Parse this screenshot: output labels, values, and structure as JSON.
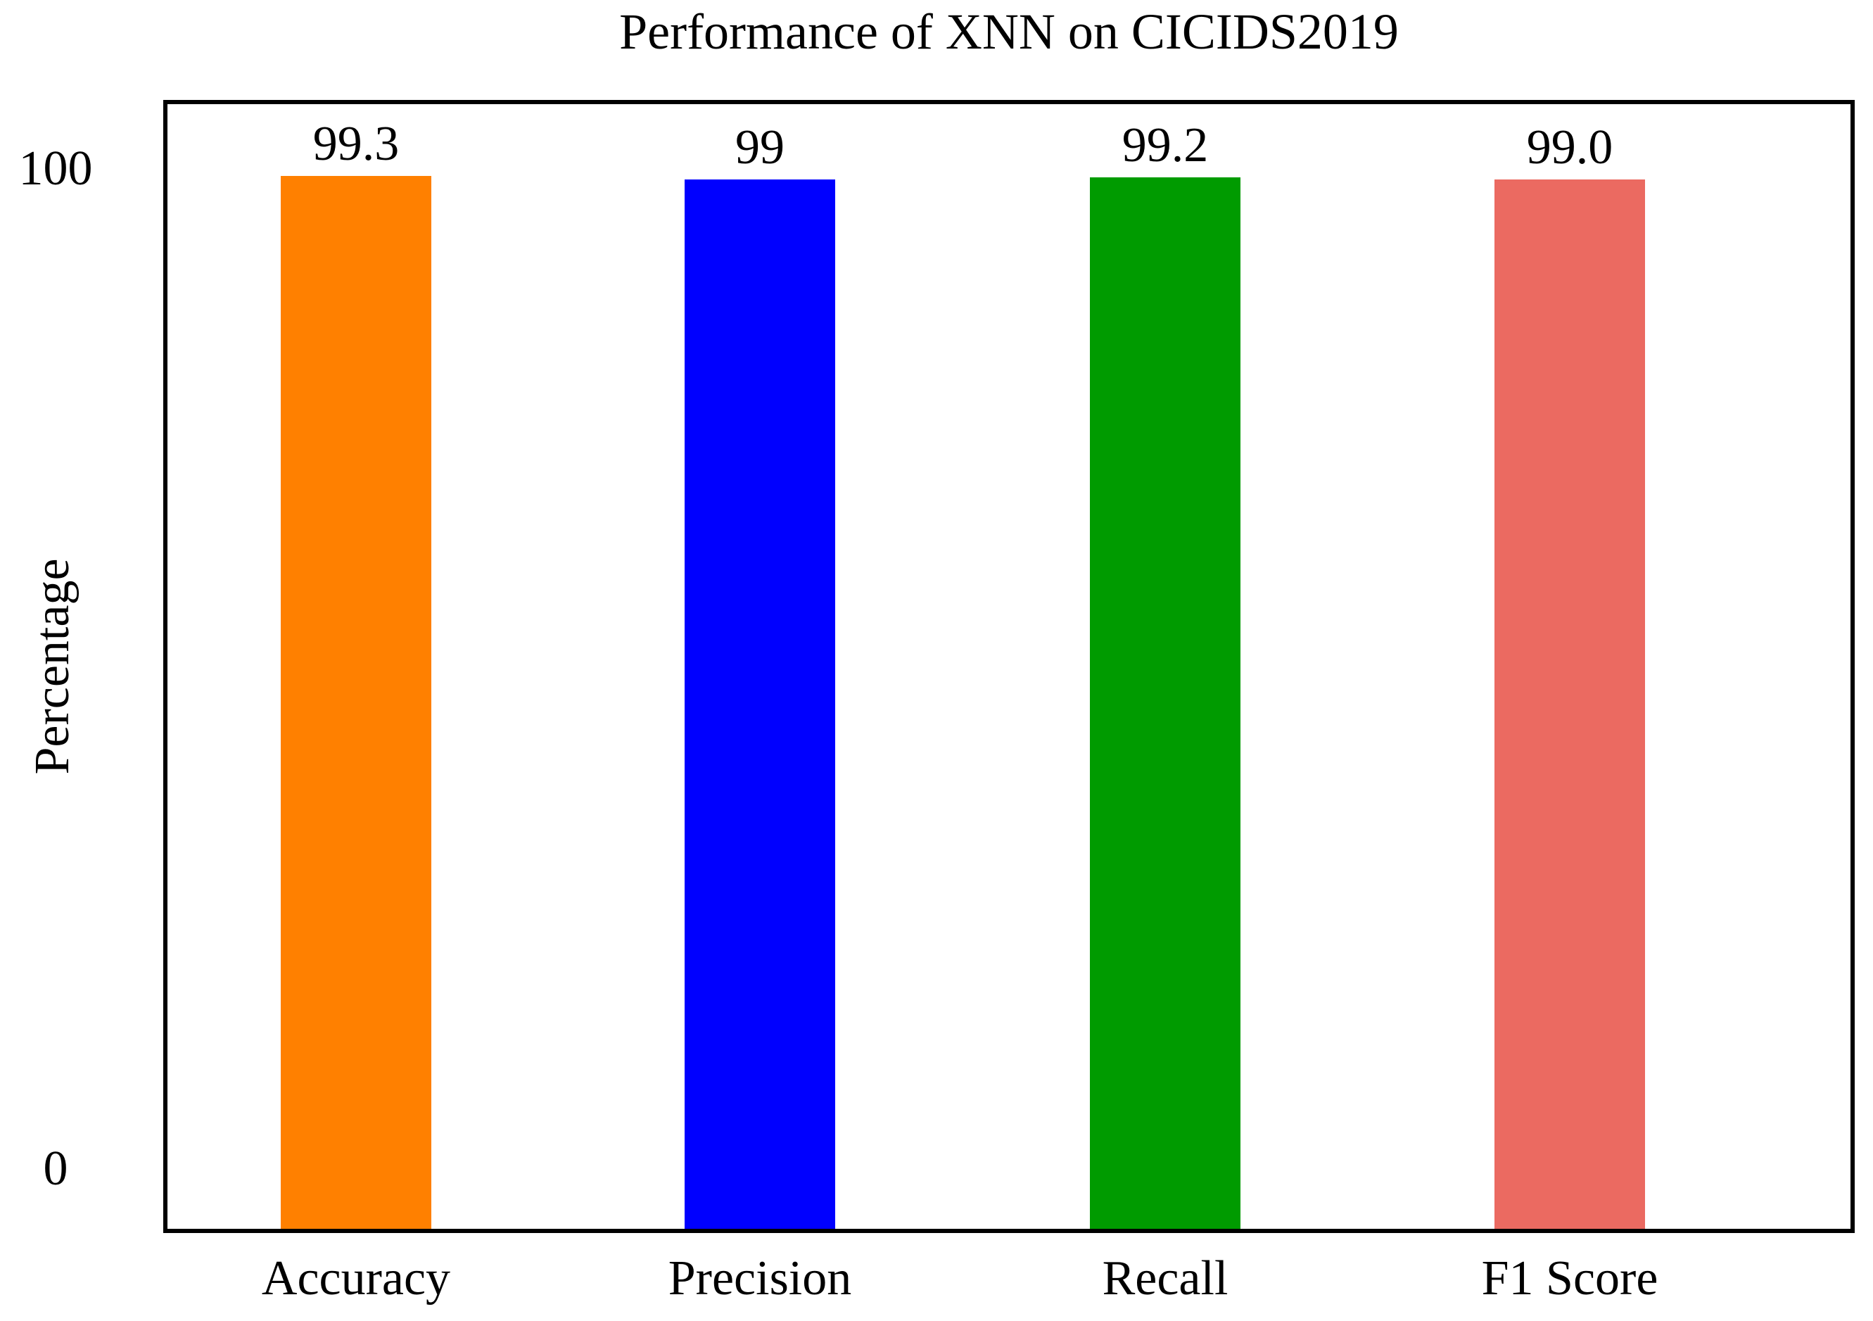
{
  "title": "Performance of XNN on CICIDS2019",
  "colors": {
    "background": "#FFFFFF",
    "frame": "#000000",
    "text": "#000000"
  },
  "chart_data": {
    "type": "bar",
    "title": "Performance of XNN on CICIDS2019",
    "xlabel": "",
    "ylabel": "Percentage",
    "categories": [
      "Accuracy",
      "Precision",
      "Recall",
      "F1 Score"
    ],
    "values": [
      99.3,
      99,
      99.2,
      99.0
    ],
    "value_labels": [
      "99.3",
      "99",
      "99.2",
      "99.0"
    ],
    "bar_colors": [
      "#FF8000",
      "#0000FF",
      "#009B00",
      "#EB6A61"
    ],
    "ylim": [
      -6,
      106.5
    ],
    "yticks": [
      {
        "value": 0,
        "label": "0"
      },
      {
        "value": 100,
        "label": "100"
      }
    ],
    "grid": false,
    "legend": null
  }
}
